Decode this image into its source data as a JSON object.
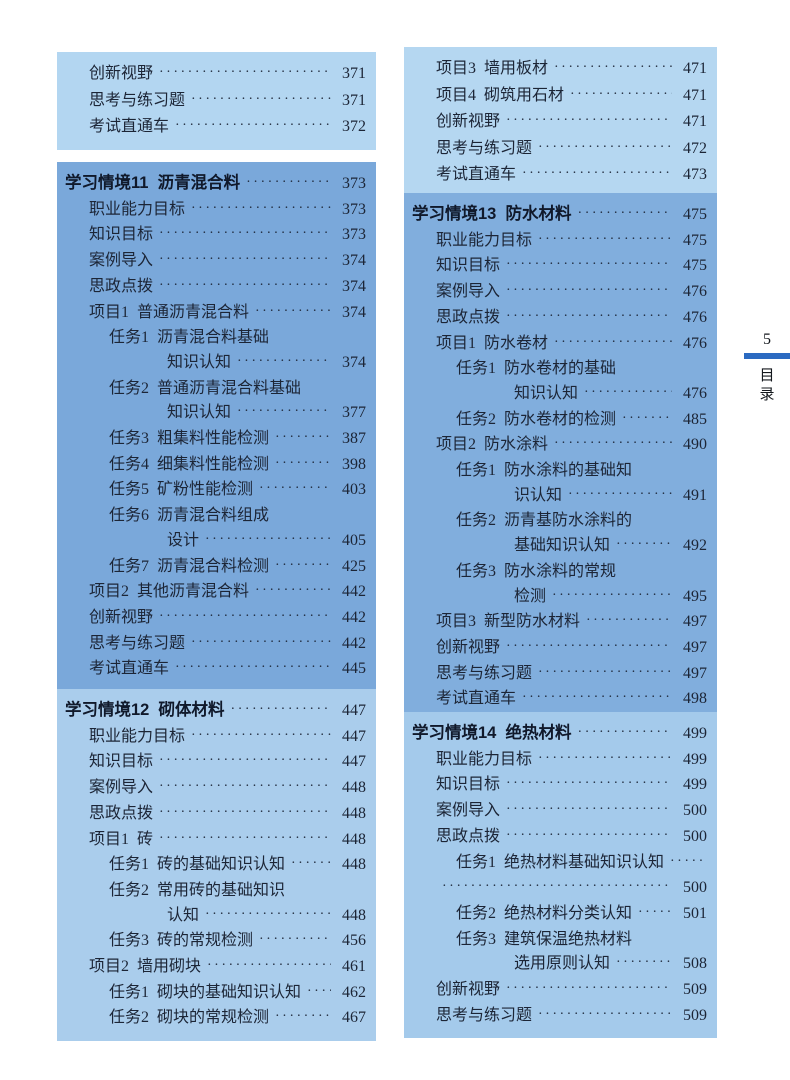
{
  "page_marker": {
    "page_number": "5",
    "label": "目录",
    "bar_color": "#2b6ac1"
  },
  "colors": {
    "text": "#1c2536",
    "heading": "#10192b",
    "box_light_blue": "#b3d6f1",
    "box_medium_blue": "#7aa8da"
  },
  "boxes": [
    {
      "id": "toc-box-chapter10-tail",
      "bg": "#b3d6f1",
      "items": [
        {
          "t": "创新视野",
          "lvl": 1,
          "dots": true,
          "page": "371"
        },
        {
          "t": "思考与练习题",
          "lvl": 1,
          "dots": true,
          "page": "371"
        },
        {
          "t": "考试直通车",
          "lvl": 1,
          "dots": true,
          "page": "372"
        }
      ]
    },
    {
      "id": "toc-box-chapter11",
      "bg": "#7aa8da",
      "items": [
        {
          "t": "学习情境11  沥青混合料",
          "lvl": 0,
          "dots": true,
          "page": "373"
        },
        {
          "t": "职业能力目标",
          "lvl": 1,
          "dots": true,
          "page": "373"
        },
        {
          "t": "知识目标",
          "lvl": 1,
          "dots": true,
          "page": "373"
        },
        {
          "t": "案例导入",
          "lvl": 1,
          "dots": true,
          "page": "374"
        },
        {
          "t": "思政点拨",
          "lvl": 1,
          "dots": true,
          "page": "374"
        },
        {
          "t": "项目1  普通沥青混合料",
          "lvl": 1,
          "dots": true,
          "page": "374"
        },
        {
          "t": "任务1  沥青混合料基础",
          "lvl": 2,
          "dots": false,
          "page": ""
        },
        {
          "t": "知识认知",
          "lvl": 3,
          "dots": true,
          "page": "374"
        },
        {
          "t": "任务2  普通沥青混合料基础",
          "lvl": 2,
          "dots": false,
          "page": ""
        },
        {
          "t": "知识认知",
          "lvl": 3,
          "dots": true,
          "page": "377"
        },
        {
          "t": "任务3  粗集料性能检测",
          "lvl": 2,
          "dots": true,
          "page": "387"
        },
        {
          "t": "任务4  细集料性能检测",
          "lvl": 2,
          "dots": true,
          "page": "398"
        },
        {
          "t": "任务5  矿粉性能检测",
          "lvl": 2,
          "dots": true,
          "page": "403"
        },
        {
          "t": "任务6  沥青混合料组成",
          "lvl": 2,
          "dots": false,
          "page": ""
        },
        {
          "t": "设计",
          "lvl": 3,
          "dots": true,
          "page": "405"
        },
        {
          "t": "任务7  沥青混合料检测",
          "lvl": 2,
          "dots": true,
          "page": "425"
        },
        {
          "t": "项目2  其他沥青混合料",
          "lvl": 1,
          "dots": true,
          "page": "442"
        },
        {
          "t": "创新视野",
          "lvl": 1,
          "dots": true,
          "page": "442"
        },
        {
          "t": "思考与练习题",
          "lvl": 1,
          "dots": true,
          "page": "442"
        },
        {
          "t": "考试直通车",
          "lvl": 1,
          "dots": true,
          "page": "445"
        }
      ]
    },
    {
      "id": "toc-box-chapter12",
      "bg": "#aacdec",
      "items": [
        {
          "t": "学习情境12  砌体材料",
          "lvl": 0,
          "dots": true,
          "page": "447"
        },
        {
          "t": "职业能力目标",
          "lvl": 1,
          "dots": true,
          "page": "447"
        },
        {
          "t": "知识目标",
          "lvl": 1,
          "dots": true,
          "page": "447"
        },
        {
          "t": "案例导入",
          "lvl": 1,
          "dots": true,
          "page": "448"
        },
        {
          "t": "思政点拨",
          "lvl": 1,
          "dots": true,
          "page": "448"
        },
        {
          "t": "项目1  砖",
          "lvl": 1,
          "dots": true,
          "page": "448"
        },
        {
          "t": "任务1  砖的基础知识认知",
          "lvl": 2,
          "dots": true,
          "page": "448"
        },
        {
          "t": "任务2  常用砖的基础知识",
          "lvl": 2,
          "dots": false,
          "page": ""
        },
        {
          "t": "认知",
          "lvl": 3,
          "dots": true,
          "page": "448"
        },
        {
          "t": "任务3  砖的常规检测",
          "lvl": 2,
          "dots": true,
          "page": "456"
        },
        {
          "t": "项目2  墙用砌块",
          "lvl": 1,
          "dots": true,
          "page": "461"
        },
        {
          "t": "任务1  砌块的基础知识认知",
          "lvl": 2,
          "dots": true,
          "page": "462"
        },
        {
          "t": "任务2  砌块的常规检测",
          "lvl": 2,
          "dots": true,
          "page": "467"
        }
      ]
    },
    {
      "id": "toc-box-chapter12-tail",
      "bg": "#b5d7f1",
      "items": [
        {
          "t": "项目3  墙用板材",
          "lvl": 1,
          "dots": true,
          "page": "471"
        },
        {
          "t": "项目4  砌筑用石材",
          "lvl": 1,
          "dots": true,
          "page": "471"
        },
        {
          "t": "创新视野",
          "lvl": 1,
          "dots": true,
          "page": "471"
        },
        {
          "t": "思考与练习题",
          "lvl": 1,
          "dots": true,
          "page": "472"
        },
        {
          "t": "考试直通车",
          "lvl": 1,
          "dots": true,
          "page": "473"
        }
      ]
    },
    {
      "id": "toc-box-chapter13",
      "bg": "#81aedd",
      "items": [
        {
          "t": "学习情境13  防水材料",
          "lvl": 0,
          "dots": true,
          "page": "475"
        },
        {
          "t": "职业能力目标",
          "lvl": 1,
          "dots": true,
          "page": "475"
        },
        {
          "t": "知识目标",
          "lvl": 1,
          "dots": true,
          "page": "475"
        },
        {
          "t": "案例导入",
          "lvl": 1,
          "dots": true,
          "page": "476"
        },
        {
          "t": "思政点拨",
          "lvl": 1,
          "dots": true,
          "page": "476"
        },
        {
          "t": "项目1  防水卷材",
          "lvl": 1,
          "dots": true,
          "page": "476"
        },
        {
          "t": "任务1  防水卷材的基础",
          "lvl": 2,
          "dots": false,
          "page": ""
        },
        {
          "t": "知识认知",
          "lvl": 3,
          "dots": true,
          "page": "476"
        },
        {
          "t": "任务2  防水卷材的检测",
          "lvl": 2,
          "dots": true,
          "page": "485"
        },
        {
          "t": "项目2  防水涂料",
          "lvl": 1,
          "dots": true,
          "page": "490"
        },
        {
          "t": "任务1  防水涂料的基础知",
          "lvl": 2,
          "dots": false,
          "page": ""
        },
        {
          "t": "识认知",
          "lvl": 3,
          "dots": true,
          "page": "491"
        },
        {
          "t": "任务2  沥青基防水涂料的",
          "lvl": 2,
          "dots": false,
          "page": ""
        },
        {
          "t": "基础知识认知",
          "lvl": 3,
          "dots": true,
          "page": "492"
        },
        {
          "t": "任务3  防水涂料的常规",
          "lvl": 2,
          "dots": false,
          "page": ""
        },
        {
          "t": "检测",
          "lvl": 3,
          "dots": true,
          "page": "495"
        },
        {
          "t": "项目3  新型防水材料",
          "lvl": 1,
          "dots": true,
          "page": "497"
        },
        {
          "t": "创新视野",
          "lvl": 1,
          "dots": true,
          "page": "497"
        },
        {
          "t": "思考与练习题",
          "lvl": 1,
          "dots": true,
          "page": "497"
        },
        {
          "t": "考试直通车",
          "lvl": 1,
          "dots": true,
          "page": "498"
        }
      ]
    },
    {
      "id": "toc-box-chapter14",
      "bg": "#a4caeb",
      "items": [
        {
          "t": "学习情境14  绝热材料",
          "lvl": 0,
          "dots": true,
          "page": "499"
        },
        {
          "t": "职业能力目标",
          "lvl": 1,
          "dots": true,
          "page": "499"
        },
        {
          "t": "知识目标",
          "lvl": 1,
          "dots": true,
          "page": "499"
        },
        {
          "t": "案例导入",
          "lvl": 1,
          "dots": true,
          "page": "500"
        },
        {
          "t": "思政点拨",
          "lvl": 1,
          "dots": true,
          "page": "500"
        },
        {
          "t": "任务1  绝热材料基础知识认知",
          "lvl": 2,
          "dots": true,
          "page": ""
        },
        {
          "t": "",
          "lvl": 1,
          "dots": true,
          "page": "500"
        },
        {
          "t": "任务2  绝热材料分类认知",
          "lvl": 2,
          "dots": true,
          "page": "501"
        },
        {
          "t": "任务3  建筑保温绝热材料",
          "lvl": 2,
          "dots": false,
          "page": ""
        },
        {
          "t": "选用原则认知",
          "lvl": 3,
          "dots": true,
          "page": "508"
        },
        {
          "t": "创新视野",
          "lvl": 1,
          "dots": true,
          "page": "509"
        },
        {
          "t": "思考与练习题",
          "lvl": 1,
          "dots": true,
          "page": "509"
        }
      ]
    }
  ]
}
